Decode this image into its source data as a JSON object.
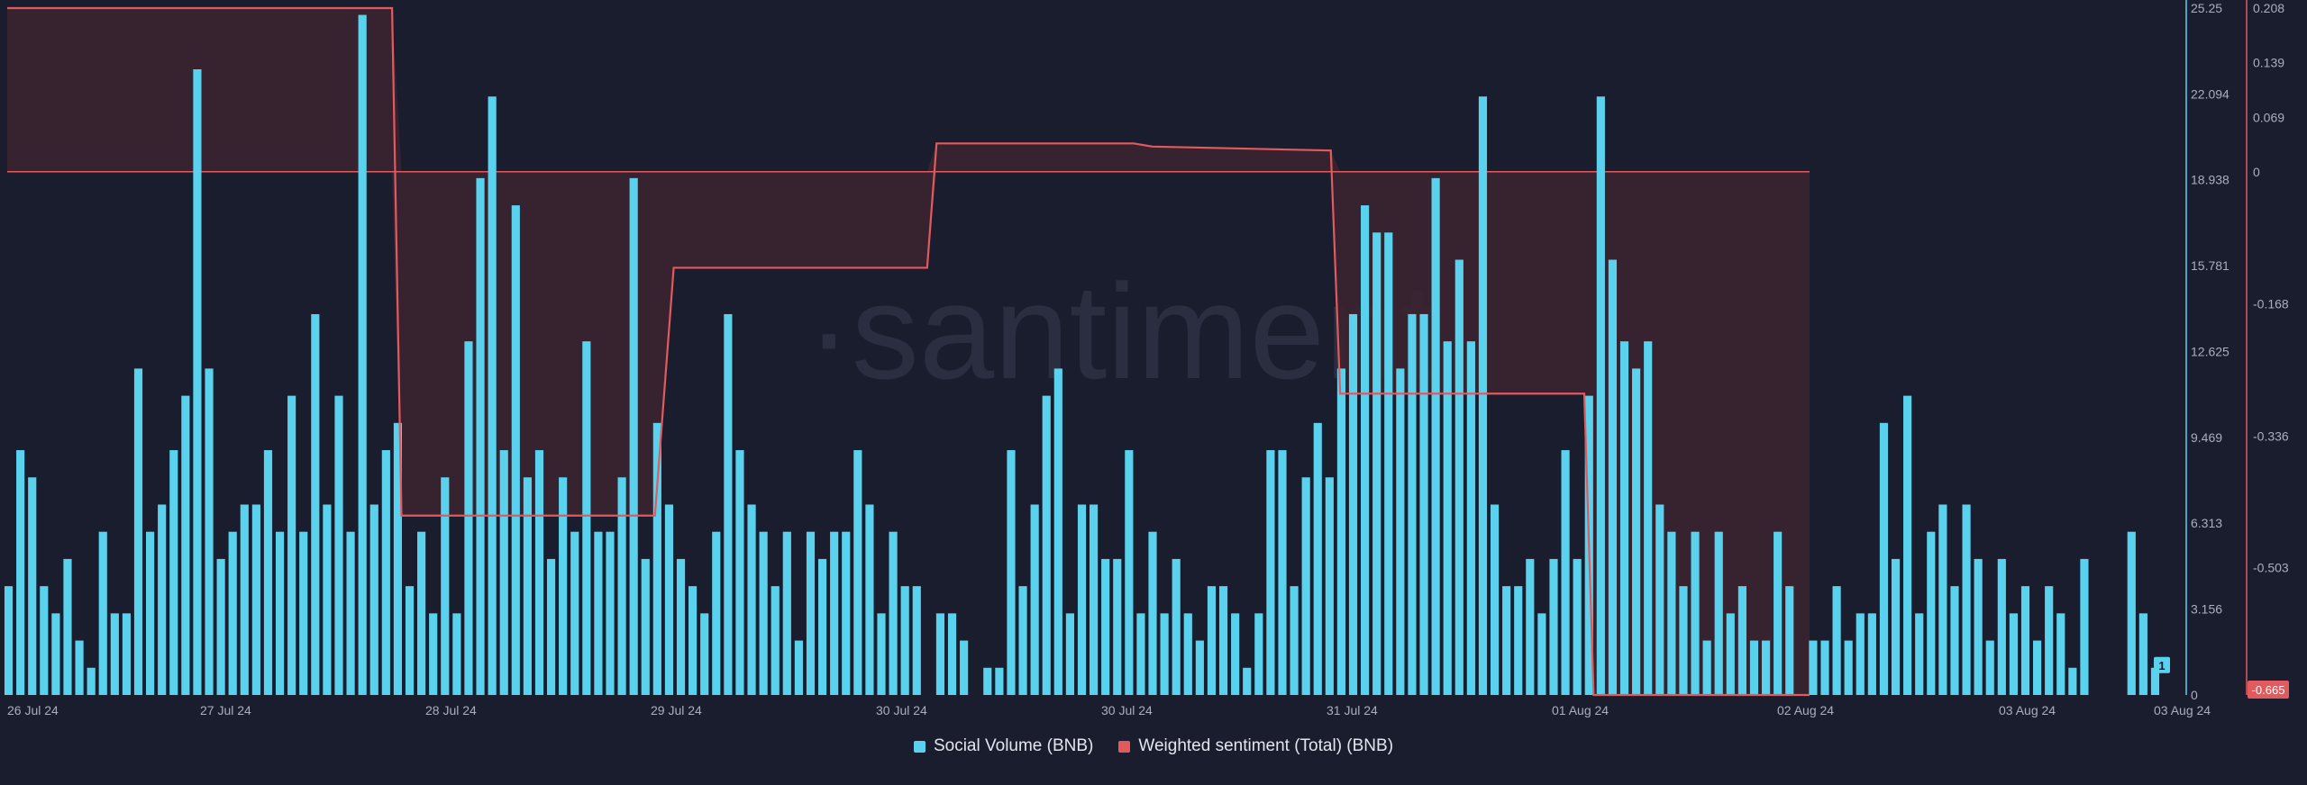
{
  "watermark": "·santiment",
  "legend": {
    "social_label": "Social Volume (BNB)",
    "sentiment_label": "Weighted sentiment (Total) (BNB)"
  },
  "colors": {
    "background": "#1a1d2e",
    "social": "#5ad2ee",
    "sentiment": "#e05a5e",
    "negative_fill": "#3a2530",
    "left_axis_line": "#5ad2ee",
    "right_axis_line": "#e05a5e"
  },
  "chart_data": {
    "type": "bar",
    "title": "",
    "grid": false,
    "legend_position": "bottom-center",
    "x_ticks": [
      "26 Jul 24",
      "27 Jul 24",
      "28 Jul 24",
      "29 Jul 24",
      "30 Jul 24",
      "30 Jul 24",
      "31 Jul 24",
      "01 Aug 24",
      "02 Aug 24",
      "03 Aug 24",
      "03 Aug 24"
    ],
    "left_axis": {
      "label": "Social Volume (BNB)",
      "ylim": [
        0,
        25.25
      ],
      "ticks": [
        "25.25",
        "22.094",
        "18.938",
        "15.781",
        "12.625",
        "9.469",
        "6.313",
        "3.156",
        "0"
      ]
    },
    "right_axis": {
      "label": "Weighted sentiment (Total) (BNB)",
      "ylim": [
        -0.665,
        0.208
      ],
      "ticks": [
        "0.208",
        "0.139",
        "0.069",
        "0",
        "-0.168",
        "-0.336",
        "-0.503"
      ]
    },
    "badges": {
      "social_last": "1",
      "sentiment_last": "-0.665"
    },
    "series": [
      {
        "name": "Social Volume (BNB)",
        "type": "bar",
        "values": [
          4,
          9,
          8,
          4,
          3,
          5,
          2,
          1,
          6,
          3,
          3,
          12,
          6,
          7,
          9,
          11,
          23,
          12,
          5,
          6,
          7,
          7,
          9,
          6,
          11,
          6,
          14,
          7,
          11,
          6,
          25,
          7,
          9,
          10,
          4,
          6,
          3,
          8,
          3,
          13,
          19,
          22,
          9,
          18,
          8,
          9,
          5,
          8,
          6,
          13,
          6,
          6,
          8,
          19,
          5,
          10,
          7,
          5,
          4,
          3,
          6,
          14,
          9,
          7,
          6,
          4,
          6,
          2,
          6,
          5,
          6,
          6,
          9,
          7,
          3,
          6,
          4,
          4,
          null,
          3,
          3,
          2,
          null,
          1,
          1,
          9,
          4,
          7,
          11,
          12,
          3,
          7,
          7,
          5,
          5,
          9,
          3,
          6,
          3,
          5,
          3,
          2,
          4,
          4,
          3,
          1,
          3,
          9,
          9,
          4,
          8,
          10,
          8,
          12,
          14,
          18,
          17,
          17,
          12,
          14,
          14,
          19,
          13,
          16,
          13,
          22,
          7,
          4,
          4,
          5,
          3,
          5,
          9,
          5,
          11,
          22,
          16,
          13,
          12,
          13,
          7,
          6,
          4,
          6,
          2,
          6,
          3,
          4,
          2,
          2,
          6,
          4,
          0,
          2,
          2,
          4,
          2,
          3,
          3,
          10,
          5,
          11,
          3,
          6,
          7,
          4,
          7,
          5,
          2,
          5,
          3,
          4,
          2,
          4,
          3,
          1,
          5,
          null,
          null,
          null,
          6,
          3,
          1
        ]
      },
      {
        "name": "Weighted sentiment (Total) (BNB)",
        "type": "line",
        "points": [
          [
            "26 Jul 00:00",
            0.208
          ],
          [
            "27 Jul 17:00",
            0.208
          ],
          [
            "27 Jul 18:00",
            -0.437
          ],
          [
            "28 Jul 21:00",
            -0.437
          ],
          [
            "28 Jul 23:00",
            -0.122
          ],
          [
            "30 Jul 02:00",
            -0.122
          ],
          [
            "30 Jul 03:00",
            0.036
          ],
          [
            "31 Jul 00:00",
            0.036
          ],
          [
            "31 Jul 02:00",
            0.032
          ],
          [
            "31 Jul 21:00",
            0.027
          ],
          [
            "31 Jul 22:00",
            -0.282
          ],
          [
            "02 Aug 00:00",
            -0.282
          ],
          [
            "02 Aug 01:00",
            -0.665
          ],
          [
            "03 Aug 00:00",
            -0.665
          ]
        ]
      }
    ]
  }
}
